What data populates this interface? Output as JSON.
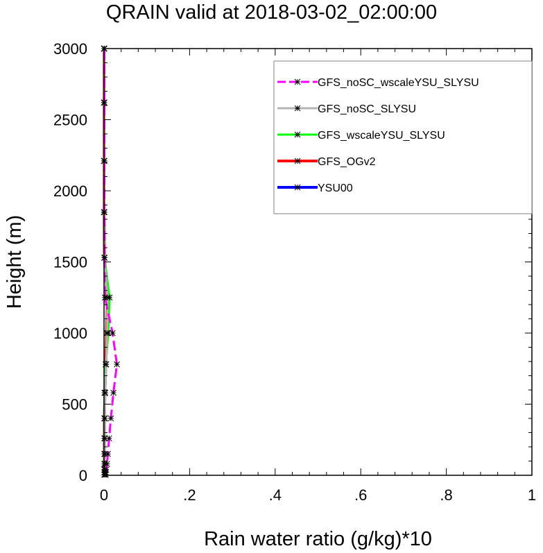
{
  "chart_data": {
    "type": "line",
    "title": "QRAIN valid at 2018-03-02_02:00:00",
    "xlabel": "Rain water ratio (g/kg)*10",
    "ylabel": "Height (m)",
    "xlim": [
      0,
      1
    ],
    "ylim": [
      0,
      3000
    ],
    "x_ticks": [
      0,
      0.2,
      0.4,
      0.6,
      0.8,
      1
    ],
    "x_tick_labels": [
      "0",
      ".2",
      ".4",
      ".6",
      ".8",
      "1"
    ],
    "y_ticks": [
      0,
      500,
      1000,
      1500,
      2000,
      2500,
      3000
    ],
    "y_tick_labels": [
      "0",
      "500",
      "1000",
      "1500",
      "2000",
      "2500",
      "3000"
    ],
    "grid": false,
    "legend_position": "top-right",
    "series": [
      {
        "name": "GFS_noSC_wscaleYSU_SLYSU",
        "color": "#ff00ff",
        "dash": "dashed",
        "width": 3,
        "x": [
          0.004,
          0.004,
          0.005,
          0.007,
          0.009,
          0.012,
          0.016,
          0.022,
          0.03,
          0.02,
          0.002,
          0.001,
          0.001,
          0.001,
          0.001,
          0.001
        ],
        "y": [
          5,
          20,
          40,
          80,
          150,
          260,
          400,
          580,
          780,
          1000,
          1250,
          1530,
          1850,
          2210,
          2620,
          3000
        ]
      },
      {
        "name": "GFS_noSC_SLYSU",
        "color": "#b4b4b4",
        "dash": "solid",
        "width": 3,
        "x": [
          0.002,
          0.002,
          0.002,
          0.002,
          0.002,
          0.002,
          0.002,
          0.003,
          0.005,
          0.007,
          0.008,
          0.001,
          0.0,
          0.0,
          0.0,
          0.0
        ],
        "y": [
          5,
          20,
          40,
          80,
          150,
          260,
          400,
          580,
          780,
          1000,
          1250,
          1530,
          1850,
          2210,
          2620,
          3000
        ]
      },
      {
        "name": "GFS_wscaleYSU_SLYSU",
        "color": "#00ff00",
        "dash": "solid",
        "width": 3,
        "x": [
          0.001,
          0.001,
          0.001,
          0.001,
          0.001,
          0.001,
          0.001,
          0.001,
          0.004,
          0.01,
          0.013,
          0.001,
          0.0,
          0.0,
          0.0,
          0.0
        ],
        "y": [
          5,
          20,
          40,
          80,
          150,
          260,
          400,
          580,
          780,
          1000,
          1250,
          1530,
          1850,
          2210,
          2620,
          3000
        ]
      },
      {
        "name": "GFS_OGv2",
        "color": "#ff0000",
        "dash": "solid",
        "width": 4,
        "x": [
          0.001,
          0.001,
          0.001,
          0.001,
          0.001,
          0.001,
          0.001,
          0.002,
          0.004,
          0.006,
          0.008,
          0.001,
          0.0,
          0.0,
          0.0,
          0.0
        ],
        "y": [
          5,
          20,
          40,
          80,
          150,
          260,
          400,
          580,
          780,
          1000,
          1250,
          1530,
          1850,
          2210,
          2620,
          3000
        ]
      },
      {
        "name": "YSU00",
        "color": "#0000ff",
        "dash": "solid",
        "width": 4,
        "x": [
          0.001,
          0.001,
          0.001,
          0.001,
          0.001,
          0.001,
          0.001,
          0.002,
          0.004,
          0.007,
          0.009,
          0.001,
          0.0,
          0.0,
          0.0,
          0.0
        ],
        "y": [
          5,
          20,
          40,
          80,
          150,
          260,
          400,
          580,
          780,
          1000,
          1250,
          1530,
          1850,
          2210,
          2620,
          3000
        ]
      }
    ]
  }
}
